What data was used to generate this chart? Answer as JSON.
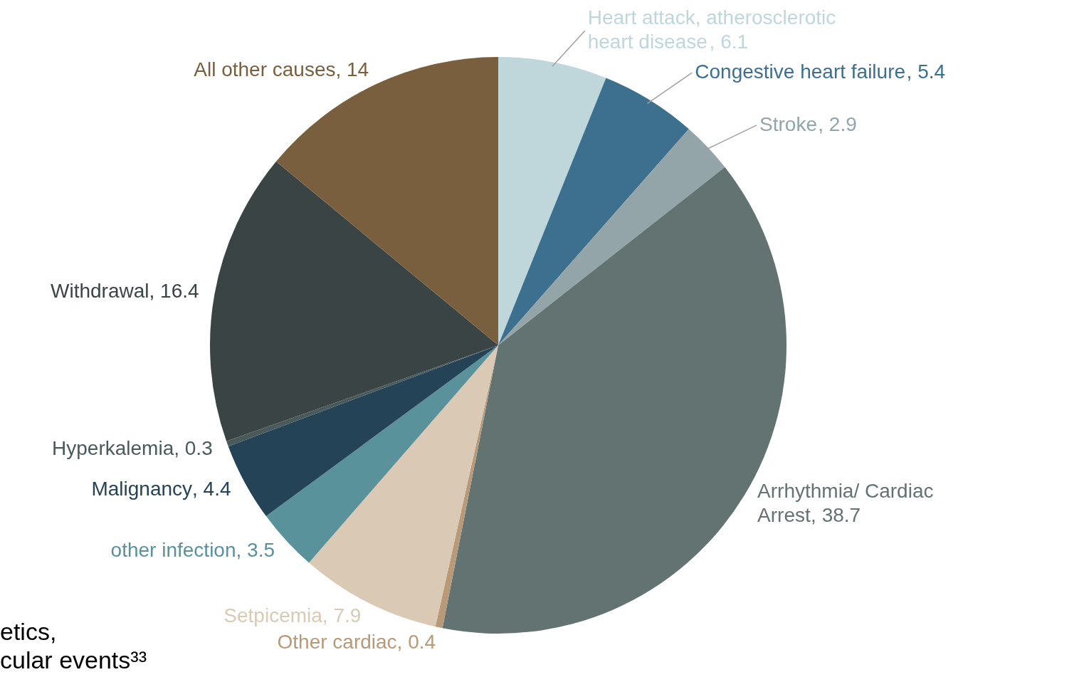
{
  "chart_data": {
    "type": "pie",
    "categories": [
      "Heart attack, atherosclerotic heart disease",
      "Congestive heart failure",
      "Stroke",
      "Arrhythmia/ Cardiac Arrest",
      "Other cardiac",
      "Setpicemia",
      "other infection",
      "Malignancy",
      "Hyperkalemia",
      "Withdrawal",
      "All other causes"
    ],
    "values": [
      6.1,
      5.4,
      2.9,
      38.7,
      0.4,
      7.9,
      3.5,
      4.4,
      0.3,
      16.4,
      14
    ],
    "colors": [
      "#bfd7db",
      "#3d6f8e",
      "#93a5a8",
      "#627371",
      "#b89a78",
      "#d9c9b5",
      "#5a929c",
      "#254357",
      "#4a5a5a",
      "#3b4444",
      "#7a5f3e"
    ],
    "value_labels": [
      ", 6.1",
      ", 5.4",
      ", 2.9",
      ", 38.7",
      ", 0.4",
      ", 7.9",
      ", 3.5",
      ", 4.4",
      ", 0.3",
      ", 16.4",
      ", 14"
    ],
    "annotations": [
      "etics,",
      "cular events³³"
    ]
  }
}
